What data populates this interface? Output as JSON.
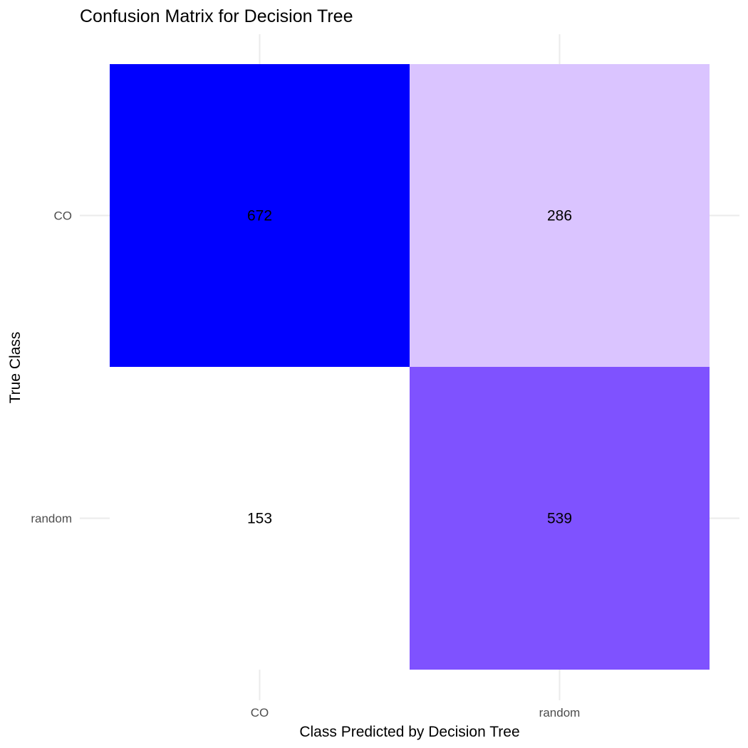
{
  "chart_data": {
    "type": "heatmap",
    "title": "Confusion Matrix for Decision Tree",
    "xlabel": "Class Predicted by Decision Tree",
    "ylabel": "True Class",
    "x_categories": [
      "CO",
      "random"
    ],
    "y_categories": [
      "CO",
      "random"
    ],
    "cells": [
      {
        "true": "CO",
        "predicted": "CO",
        "value": 672,
        "label": "672"
      },
      {
        "true": "CO",
        "predicted": "random",
        "value": 286,
        "label": "286"
      },
      {
        "true": "random",
        "predicted": "CO",
        "value": 153,
        "label": "153"
      },
      {
        "true": "random",
        "predicted": "random",
        "value": 539,
        "label": "539"
      }
    ],
    "color_scale": {
      "low": "#ffffff",
      "high": "#0000ff",
      "mid": "#7f4fff"
    },
    "cell_colors": {
      "CO|CO": "#0000ff",
      "CO|random": "#dac4ff",
      "random|CO": "#ffffff",
      "random|random": "#7f52ff"
    },
    "grid": true,
    "legend": "none"
  }
}
